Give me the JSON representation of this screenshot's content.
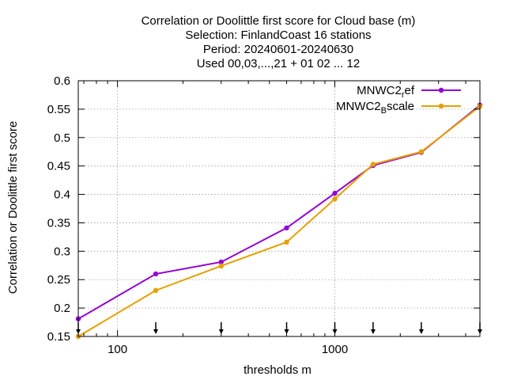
{
  "chart_data": {
    "type": "line",
    "title_lines": [
      "Correlation or Doolittle first score  for Cloud base (m)",
      "Selection: FinlandCoast     16 stations",
      "Period: 20240601-20240630",
      "Used 00,03,...,21 + 01 02 ... 12"
    ],
    "xlabel": "thresholds m",
    "ylabel": "Correlation or Doolittle first score",
    "x_scale": "log",
    "xlim": [
      66,
      4650
    ],
    "ylim": [
      0.15,
      0.6
    ],
    "x_ticks": [
      100,
      1000
    ],
    "x_tick_labels": [
      "100",
      "1000"
    ],
    "y_ticks": [
      0.15,
      0.2,
      0.25,
      0.3,
      0.35,
      0.4,
      0.45,
      0.5,
      0.55,
      0.6
    ],
    "y_tick_labels": [
      "0.15",
      "0.2",
      "0.25",
      "0.3",
      "0.35",
      "0.4",
      "0.45",
      "0.5",
      "0.55",
      "0.6"
    ],
    "grid": true,
    "legend_position": "top-right",
    "threshold_arrows_x": [
      66,
      150,
      300,
      600,
      1000,
      1500,
      2500,
      4650
    ],
    "series": [
      {
        "name_main": "MNWC2",
        "name_sub": "r",
        "name_rest": "ef",
        "color": "#9400d3",
        "x": [
          66,
          150,
          300,
          600,
          1000,
          1500,
          2500,
          4650
        ],
        "values": [
          0.181,
          0.26,
          0.281,
          0.341,
          0.402,
          0.451,
          0.474,
          0.557
        ]
      },
      {
        "name_main": "MNWC2",
        "name_sub": "B",
        "name_rest": "scale",
        "color": "#e69f00",
        "x": [
          66,
          150,
          300,
          600,
          1000,
          1500,
          2500,
          4650
        ],
        "values": [
          0.15,
          0.231,
          0.274,
          0.316,
          0.392,
          0.453,
          0.475,
          0.555
        ]
      }
    ]
  }
}
